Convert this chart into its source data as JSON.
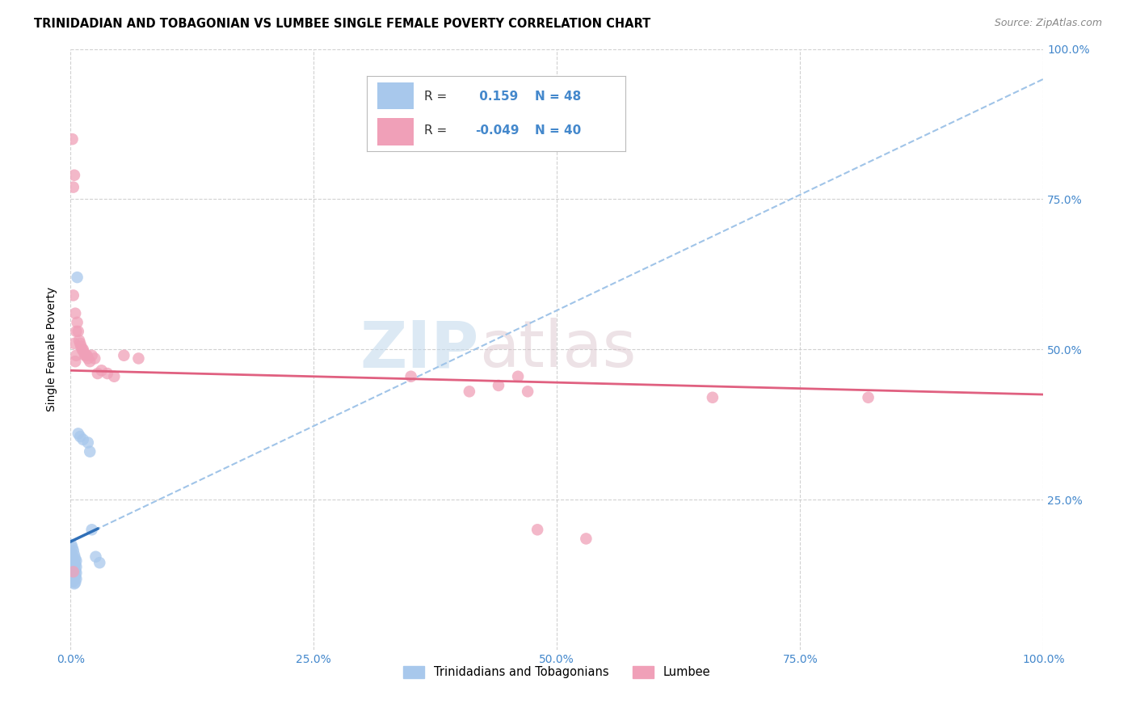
{
  "title": "TRINIDADIAN AND TOBAGONIAN VS LUMBEE SINGLE FEMALE POVERTY CORRELATION CHART",
  "source": "Source: ZipAtlas.com",
  "ylabel": "Single Female Poverty",
  "legend_label_1": "Trinidadians and Tobagonians",
  "legend_label_2": "Lumbee",
  "r1": 0.159,
  "n1": 48,
  "r2": -0.049,
  "n2": 40,
  "blue_color": "#A8C8EC",
  "pink_color": "#F0A0B8",
  "trendline_blue_solid": "#3070B8",
  "trendline_blue_dashed": "#A0C4E8",
  "trendline_pink": "#E06080",
  "background_color": "#FFFFFF",
  "grid_color": "#CCCCCC",
  "axis_label_color": "#4488CC",
  "blue_points": [
    [
      0.001,
      0.175
    ],
    [
      0.001,
      0.16
    ],
    [
      0.001,
      0.15
    ],
    [
      0.001,
      0.145
    ],
    [
      0.001,
      0.14
    ],
    [
      0.001,
      0.135
    ],
    [
      0.001,
      0.13
    ],
    [
      0.001,
      0.125
    ],
    [
      0.002,
      0.17
    ],
    [
      0.002,
      0.155
    ],
    [
      0.002,
      0.145
    ],
    [
      0.002,
      0.138
    ],
    [
      0.002,
      0.132
    ],
    [
      0.002,
      0.127
    ],
    [
      0.002,
      0.122
    ],
    [
      0.002,
      0.118
    ],
    [
      0.002,
      0.113
    ],
    [
      0.003,
      0.165
    ],
    [
      0.003,
      0.15
    ],
    [
      0.003,
      0.142
    ],
    [
      0.003,
      0.135
    ],
    [
      0.003,
      0.128
    ],
    [
      0.003,
      0.122
    ],
    [
      0.003,
      0.115
    ],
    [
      0.004,
      0.158
    ],
    [
      0.004,
      0.148
    ],
    [
      0.004,
      0.138
    ],
    [
      0.004,
      0.128
    ],
    [
      0.004,
      0.119
    ],
    [
      0.004,
      0.11
    ],
    [
      0.005,
      0.152
    ],
    [
      0.005,
      0.142
    ],
    [
      0.005,
      0.132
    ],
    [
      0.005,
      0.122
    ],
    [
      0.005,
      0.112
    ],
    [
      0.006,
      0.148
    ],
    [
      0.006,
      0.138
    ],
    [
      0.006,
      0.128
    ],
    [
      0.006,
      0.118
    ],
    [
      0.007,
      0.62
    ],
    [
      0.008,
      0.36
    ],
    [
      0.01,
      0.355
    ],
    [
      0.013,
      0.35
    ],
    [
      0.018,
      0.345
    ],
    [
      0.02,
      0.33
    ],
    [
      0.022,
      0.2
    ],
    [
      0.026,
      0.155
    ],
    [
      0.03,
      0.145
    ]
  ],
  "pink_points": [
    [
      0.002,
      0.85
    ],
    [
      0.003,
      0.77
    ],
    [
      0.004,
      0.79
    ],
    [
      0.003,
      0.59
    ],
    [
      0.005,
      0.56
    ],
    [
      0.006,
      0.53
    ],
    [
      0.004,
      0.51
    ],
    [
      0.006,
      0.49
    ],
    [
      0.005,
      0.48
    ],
    [
      0.007,
      0.545
    ],
    [
      0.008,
      0.53
    ],
    [
      0.009,
      0.515
    ],
    [
      0.01,
      0.51
    ],
    [
      0.011,
      0.505
    ],
    [
      0.012,
      0.5
    ],
    [
      0.013,
      0.5
    ],
    [
      0.014,
      0.495
    ],
    [
      0.015,
      0.49
    ],
    [
      0.016,
      0.49
    ],
    [
      0.017,
      0.49
    ],
    [
      0.018,
      0.485
    ],
    [
      0.02,
      0.48
    ],
    [
      0.022,
      0.49
    ],
    [
      0.025,
      0.485
    ],
    [
      0.028,
      0.46
    ],
    [
      0.032,
      0.465
    ],
    [
      0.038,
      0.46
    ],
    [
      0.045,
      0.455
    ],
    [
      0.055,
      0.49
    ],
    [
      0.07,
      0.485
    ],
    [
      0.35,
      0.455
    ],
    [
      0.41,
      0.43
    ],
    [
      0.46,
      0.455
    ],
    [
      0.47,
      0.43
    ],
    [
      0.48,
      0.2
    ],
    [
      0.53,
      0.185
    ],
    [
      0.66,
      0.42
    ],
    [
      0.82,
      0.42
    ],
    [
      0.003,
      0.13
    ],
    [
      0.44,
      0.44
    ]
  ]
}
